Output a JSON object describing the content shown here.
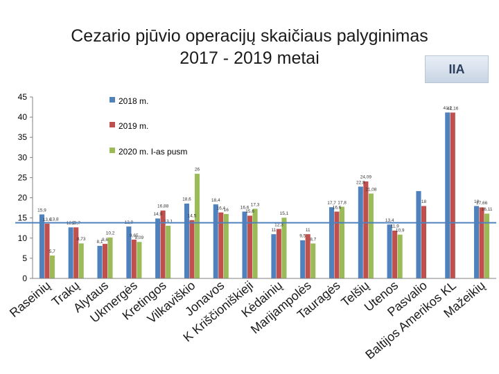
{
  "title_line1": "Cezario pjūvio operacijų skaičiaus palyginimas",
  "title_line2": "2017  - 2019 metai",
  "badge": "IIA",
  "chart_data": {
    "type": "bar",
    "ylim": [
      0,
      45
    ],
    "yticks": [
      0,
      5,
      10,
      15,
      20,
      25,
      30,
      35,
      40,
      45
    ],
    "grid": false,
    "legend_position": "top-left, inside",
    "categories": [
      "Raseinių",
      "Trakų",
      "Alytaus",
      "Ukmergės",
      "Kretingos",
      "Vilkaviškio",
      "Jonavos",
      "K Kriščioniškieji",
      "Kėdainių",
      "Marijampolės",
      "Tauragės",
      "Telšių",
      "Utenos",
      "Pasvalio",
      "Baltijos Amerikos KL",
      "Mažeikių"
    ],
    "series": [
      {
        "name": "2018 m.",
        "color": "#4f81bd",
        "values": [
          15.9,
          12.7,
          8.1,
          12.9,
          14.9,
          18.6,
          18.4,
          16.6,
          11.0,
          9.5,
          17.7,
          22.8,
          13.4,
          21.7,
          41.2,
          18.0
        ],
        "labels": [
          "15,9",
          "12,7",
          "8,1",
          "12,9",
          "14,9",
          "18,6",
          "18,4",
          "16,6",
          "11",
          "9,5",
          "17,7",
          "22,8",
          "13,4",
          "",
          "41,2",
          "18"
        ]
      },
      {
        "name": "2019 m.",
        "color": "#c0504d",
        "values": [
          13.6,
          12.7,
          8.6,
          9.65,
          16.88,
          14.5,
          16.4,
          15.6,
          12.3,
          11.0,
          16.6,
          24.09,
          11.9,
          18.0,
          41.16,
          17.66
        ],
        "labels": [
          "13,6",
          "12,7",
          "8,6",
          "9,65",
          "16,88",
          "14,5",
          "16,4",
          "15,6",
          "12,3",
          "11",
          "16,6",
          "24,09",
          "11,9",
          "18",
          "41,16",
          "17,66"
        ]
      },
      {
        "name": "2020 m. I-as pusm",
        "color": "#9bbb59",
        "values": [
          5.7,
          8.73,
          10.2,
          9.09,
          13.1,
          26.0,
          16.0,
          17.3,
          15.1,
          8.7,
          17.8,
          21.08,
          10.9,
          0,
          0,
          16.11
        ],
        "labels": [
          "5,7",
          "8,73",
          "10,2",
          "9,09",
          "13,1",
          "26",
          "16",
          "17,3",
          "15,1",
          "8,7",
          "17,8",
          "21,08",
          "10,9",
          "",
          "",
          "16,11"
        ]
      }
    ],
    "reference_line": {
      "value": 13.8,
      "label": "13,8",
      "color": "#4f81bd"
    }
  }
}
